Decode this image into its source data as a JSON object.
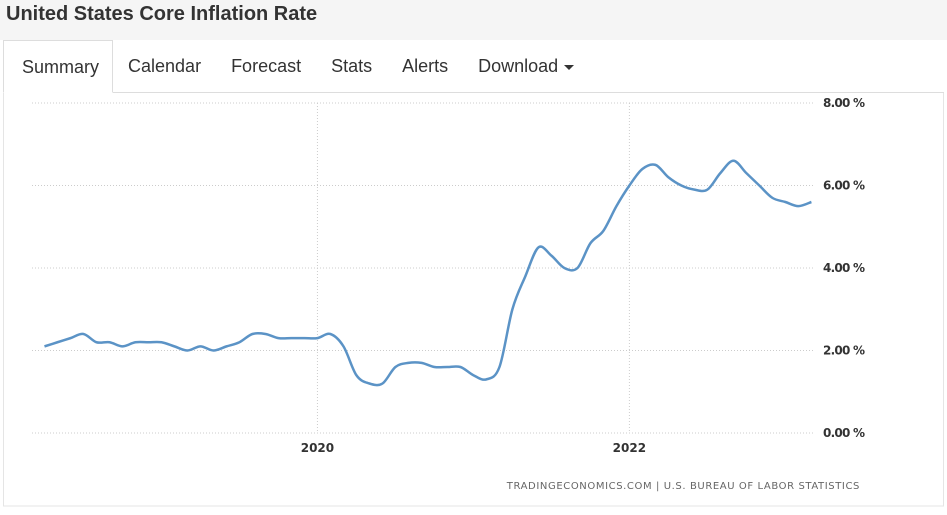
{
  "header": {
    "title": "United States Core Inflation Rate"
  },
  "tabs": [
    "Summary",
    "Calendar",
    "Forecast",
    "Stats",
    "Alerts",
    "Download"
  ],
  "chart_data": {
    "type": "line",
    "x": [
      2018.25,
      2018.333,
      2018.417,
      2018.5,
      2018.583,
      2018.667,
      2018.75,
      2018.833,
      2018.917,
      2019.0,
      2019.083,
      2019.167,
      2019.25,
      2019.333,
      2019.417,
      2019.5,
      2019.583,
      2019.667,
      2019.75,
      2019.833,
      2019.917,
      2020.0,
      2020.083,
      2020.167,
      2020.25,
      2020.333,
      2020.417,
      2020.5,
      2020.583,
      2020.667,
      2020.75,
      2020.833,
      2020.917,
      2021.0,
      2021.083,
      2021.167,
      2021.25,
      2021.333,
      2021.417,
      2021.5,
      2021.583,
      2021.667,
      2021.75,
      2021.833,
      2021.917,
      2022.0,
      2022.083,
      2022.167,
      2022.25,
      2022.333,
      2022.417,
      2022.5,
      2022.583,
      2022.667,
      2022.75,
      2022.833,
      2022.917,
      2023.0,
      2023.083,
      2023.167
    ],
    "series": [
      {
        "name": "Core Inflation Rate",
        "color": "#5b93c6",
        "values": [
          2.1,
          2.2,
          2.3,
          2.4,
          2.2,
          2.2,
          2.1,
          2.2,
          2.2,
          2.2,
          2.1,
          2.0,
          2.1,
          2.0,
          2.1,
          2.2,
          2.4,
          2.4,
          2.3,
          2.3,
          2.3,
          2.3,
          2.4,
          2.1,
          1.4,
          1.2,
          1.2,
          1.6,
          1.7,
          1.7,
          1.6,
          1.6,
          1.6,
          1.4,
          1.3,
          1.6,
          3.0,
          3.8,
          4.5,
          4.3,
          4.0,
          4.0,
          4.6,
          4.9,
          5.5,
          6.0,
          6.4,
          6.5,
          6.2,
          6.0,
          5.9,
          5.9,
          6.3,
          6.6,
          6.3,
          6.0,
          5.7,
          5.6,
          5.5,
          5.6
        ]
      }
    ],
    "xlim": [
      2018.17,
      2023.19
    ],
    "xticks": [
      2020,
      2022
    ],
    "ylim": [
      0,
      8
    ],
    "yticks": [
      {
        "value": 0,
        "label": "0.00 %"
      },
      {
        "value": 2,
        "label": "2.00 %"
      },
      {
        "value": 4,
        "label": "4.00 %"
      },
      {
        "value": 6,
        "label": "6.00 %"
      },
      {
        "value": 8,
        "label": "8.00 %"
      }
    ],
    "grid": true,
    "source": "TRADINGECONOMICS.COM | U.S. BUREAU OF LABOR STATISTICS"
  }
}
